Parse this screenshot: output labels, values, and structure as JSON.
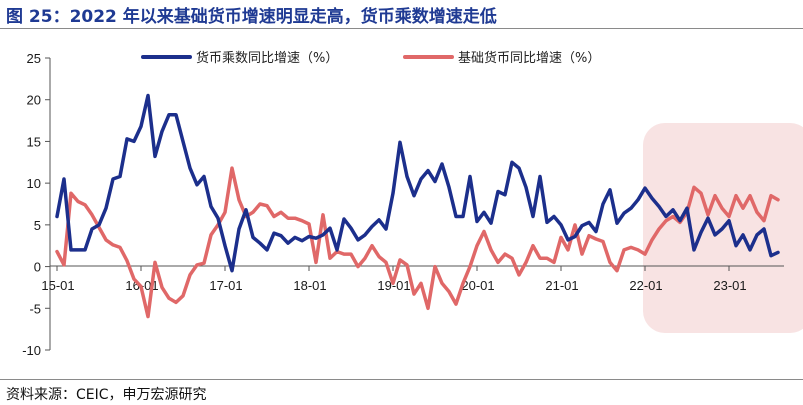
{
  "header": {
    "title": "图 25：2022 年以来基础货币增速明显走高，货币乘数增速走低"
  },
  "footer": {
    "source": "资料来源：CEIC，申万宏源研究"
  },
  "colors": {
    "multiplier": "#1c2f8c",
    "base": "#e06868",
    "highlight": "#f8e3e3",
    "title": "#1f3a93"
  },
  "chart_data": {
    "type": "line",
    "title": "图 25：2022 年以来基础货币增速明显走高，货币乘数增速走低",
    "xlabel": "",
    "ylabel": "",
    "ylim": [
      -10,
      25
    ],
    "yticks": [
      25,
      20,
      15,
      10,
      5,
      0,
      -5,
      -10
    ],
    "x_start": "2015-01",
    "x_end": "2023-12",
    "tick_labels": [
      "15-01",
      "16-01",
      "17-01",
      "18-01",
      "19-01",
      "20-01",
      "21-01",
      "22-01",
      "23-01"
    ],
    "legend_position": "top",
    "grid": false,
    "highlight_range": [
      "2022-01",
      "2023-12"
    ],
    "series": [
      {
        "name": "货币乘数同比增速（%）",
        "color": "#1c2f8c",
        "values": [
          6.0,
          10.5,
          2.0,
          2.0,
          2.0,
          4.5,
          5.0,
          7.0,
          10.5,
          10.8,
          15.3,
          15.0,
          16.8,
          20.5,
          13.2,
          16.2,
          18.2,
          18.2,
          15.0,
          11.8,
          9.8,
          10.8,
          7.2,
          5.8,
          2.5,
          -0.5,
          4.5,
          6.8,
          3.5,
          2.8,
          2.0,
          4.0,
          3.7,
          2.8,
          3.5,
          3.1,
          3.6,
          3.4,
          3.8,
          4.6,
          2.0,
          5.7,
          4.6,
          3.2,
          3.8,
          4.8,
          5.6,
          4.5,
          8.8,
          14.9,
          10.8,
          8.5,
          10.5,
          11.5,
          10.2,
          12.3,
          9.5,
          6.0,
          6.0,
          10.8,
          5.4,
          6.5,
          5.2,
          9.0,
          8.6,
          12.5,
          11.8,
          9.5,
          6.0,
          10.8,
          5.3,
          6.0,
          5.0,
          3.2,
          3.6,
          4.9,
          5.3,
          4.2,
          7.5,
          9.2,
          5.2,
          6.4,
          7.0,
          8.0,
          9.4,
          8.2,
          7.2,
          6.0,
          6.8,
          5.5,
          7.0,
          2.0,
          4.1,
          5.8,
          3.8,
          4.5,
          5.5,
          2.5,
          3.8,
          2.0,
          3.8,
          4.5,
          1.3,
          1.7
        ]
      },
      {
        "name": "基础货币同比增速（%）",
        "color": "#e06868",
        "values": [
          1.8,
          0.2,
          8.8,
          7.8,
          7.4,
          6.2,
          4.7,
          3.2,
          2.6,
          2.3,
          0.7,
          -1.5,
          -2.4,
          -6.0,
          0.5,
          -2.5,
          -3.8,
          -4.3,
          -3.5,
          -1.0,
          0.2,
          0.4,
          3.8,
          5.0,
          6.5,
          11.8,
          8.0,
          6.0,
          6.5,
          7.5,
          7.3,
          6.0,
          6.5,
          5.8,
          5.8,
          5.5,
          5.1,
          0.5,
          6.2,
          1.0,
          1.8,
          1.5,
          1.5,
          0.0,
          1.0,
          2.5,
          1.2,
          0.5,
          -2.0,
          0.8,
          0.2,
          -3.3,
          -2.0,
          -5.0,
          0.0,
          -2.0,
          -3.0,
          -4.5,
          -2.0,
          0.0,
          2.5,
          4.2,
          2.0,
          0.5,
          1.5,
          1.0,
          -1.0,
          0.5,
          2.5,
          1.0,
          1.0,
          0.5,
          3.5,
          2.0,
          5.0,
          1.5,
          3.7,
          3.3,
          3.0,
          0.5,
          -0.5,
          2.0,
          2.3,
          2.0,
          1.5,
          3.2,
          4.5,
          5.5,
          6.0,
          5.3,
          6.5,
          9.5,
          8.8,
          6.2,
          8.5,
          7.0,
          6.0,
          8.5,
          7.0,
          8.5,
          6.5,
          5.5,
          8.5,
          8.0
        ]
      }
    ]
  }
}
